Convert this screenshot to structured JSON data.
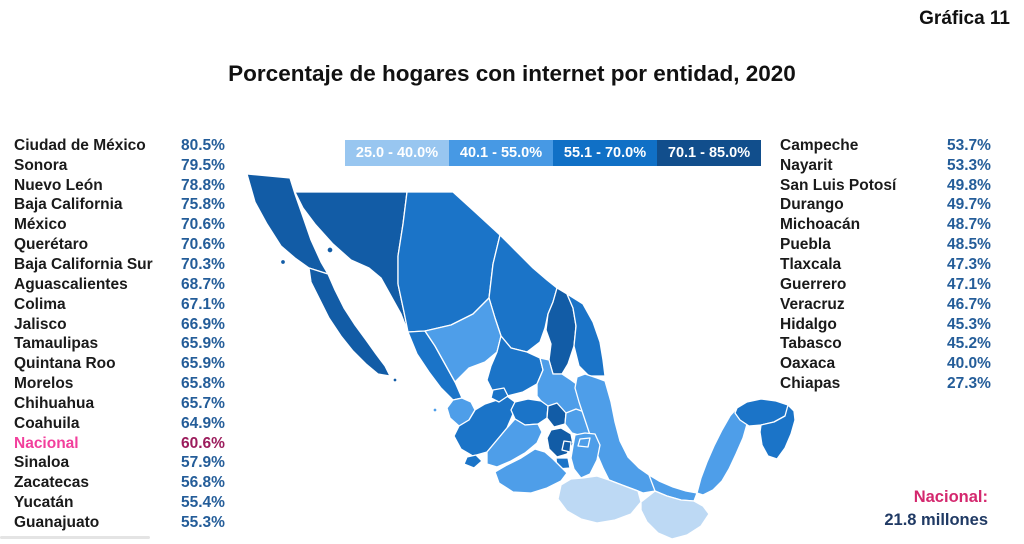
{
  "page": {
    "figure_label": "Gráfica 11",
    "title": "Porcentaje de hogares con internet por entidad, 2020"
  },
  "theme": {
    "value-blue": "#245D99",
    "national-pink": "#F23F9C",
    "national-maroon": "#9C1C5C",
    "footer-pink": "#D4286E",
    "footer-navy": "#203A64"
  },
  "legend": {
    "ranges": [
      {
        "label": "25.0 - 40.0%",
        "color": "#98C6F0"
      },
      {
        "label": "40.1 - 55.0%",
        "color": "#4799E4"
      },
      {
        "label": "55.1 - 70.0%",
        "color": "#1070C6"
      },
      {
        "label": "70.1 - 85.0%",
        "color": "#114E8C"
      }
    ]
  },
  "left_list": [
    {
      "name": "Ciudad de México",
      "value": "80.5%"
    },
    {
      "name": "Sonora",
      "value": "79.5%"
    },
    {
      "name": "Nuevo León",
      "value": "78.8%"
    },
    {
      "name": "Baja California",
      "value": "75.8%"
    },
    {
      "name": "México",
      "value": "70.6%"
    },
    {
      "name": "Querétaro",
      "value": "70.6%"
    },
    {
      "name": "Baja California Sur",
      "value": "70.3%"
    },
    {
      "name": "Aguascalientes",
      "value": "68.7%"
    },
    {
      "name": "Colima",
      "value": "67.1%"
    },
    {
      "name": "Jalisco",
      "value": "66.9%"
    },
    {
      "name": "Tamaulipas",
      "value": "65.9%"
    },
    {
      "name": "Quintana Roo",
      "value": "65.9%"
    },
    {
      "name": "Morelos",
      "value": "65.8%"
    },
    {
      "name": "Chihuahua",
      "value": "65.7%"
    },
    {
      "name": "Coahuila",
      "value": "64.9%"
    },
    {
      "name": "Nacional",
      "value": "60.6%",
      "highlight": true
    },
    {
      "name": "Sinaloa",
      "value": "57.9%"
    },
    {
      "name": "Zacatecas",
      "value": "56.8%"
    },
    {
      "name": "Yucatán",
      "value": "55.4%"
    },
    {
      "name": "Guanajuato",
      "value": "55.3%"
    }
  ],
  "right_list": [
    {
      "name": "Campeche",
      "value": "53.7%"
    },
    {
      "name": "Nayarit",
      "value": "53.3%"
    },
    {
      "name": "San Luis Potosí",
      "value": "49.8%"
    },
    {
      "name": "Durango",
      "value": "49.7%"
    },
    {
      "name": "Michoacán",
      "value": "48.7%"
    },
    {
      "name": "Puebla",
      "value": "48.5%"
    },
    {
      "name": "Tlaxcala",
      "value": "47.3%"
    },
    {
      "name": "Guerrero",
      "value": "47.1%"
    },
    {
      "name": "Veracruz",
      "value": "46.7%"
    },
    {
      "name": "Hidalgo",
      "value": "45.3%"
    },
    {
      "name": "Tabasco",
      "value": "45.2%"
    },
    {
      "name": "Oaxaca",
      "value": "40.0%"
    },
    {
      "name": "Chiapas",
      "value": "27.3%"
    }
  ],
  "national": {
    "label": "Nacional:",
    "value": "21.8 millones"
  },
  "map": {
    "range_colors": [
      "#BDD9F4",
      "#4E9EE9",
      "#1B74C8",
      "#125CA6"
    ],
    "states": [
      {
        "name": "Baja California",
        "range": 4
      },
      {
        "name": "Baja California Sur",
        "range": 4
      },
      {
        "name": "Sonora",
        "range": 4
      },
      {
        "name": "Chihuahua",
        "range": 3
      },
      {
        "name": "Coahuila",
        "range": 3
      },
      {
        "name": "Nuevo León",
        "range": 4
      },
      {
        "name": "Tamaulipas",
        "range": 3
      },
      {
        "name": "Sinaloa",
        "range": 3
      },
      {
        "name": "Durango",
        "range": 2
      },
      {
        "name": "Zacatecas",
        "range": 3
      },
      {
        "name": "San Luis Potosí",
        "range": 2
      },
      {
        "name": "Nayarit",
        "range": 2
      },
      {
        "name": "Jalisco",
        "range": 3
      },
      {
        "name": "Aguascalientes",
        "range": 3
      },
      {
        "name": "Guanajuato",
        "range": 3
      },
      {
        "name": "Querétaro",
        "range": 4
      },
      {
        "name": "Hidalgo",
        "range": 2
      },
      {
        "name": "Veracruz",
        "range": 2
      },
      {
        "name": "Michoacán",
        "range": 2
      },
      {
        "name": "Colima",
        "range": 3
      },
      {
        "name": "México",
        "range": 4
      },
      {
        "name": "Ciudad de México",
        "range": 4
      },
      {
        "name": "Morelos",
        "range": 3
      },
      {
        "name": "Tlaxcala",
        "range": 2
      },
      {
        "name": "Puebla",
        "range": 2
      },
      {
        "name": "Guerrero",
        "range": 2
      },
      {
        "name": "Oaxaca",
        "range": 1
      },
      {
        "name": "Tabasco",
        "range": 2
      },
      {
        "name": "Chiapas",
        "range": 1
      },
      {
        "name": "Campeche",
        "range": 2
      },
      {
        "name": "Yucatán",
        "range": 3
      },
      {
        "name": "Quintana Roo",
        "range": 3
      }
    ]
  },
  "chart_data": {
    "type": "heatmap",
    "subtype": "choropleth-map-mexico",
    "title": "Porcentaje de hogares con internet por entidad, 2020",
    "unit": "%",
    "bins": [
      "25.0 - 40.0%",
      "40.1 - 55.0%",
      "55.1 - 70.0%",
      "70.1 - 85.0%"
    ],
    "legend_position": "top-center",
    "data": [
      {
        "entity": "Ciudad de México",
        "value": 80.5
      },
      {
        "entity": "Sonora",
        "value": 79.5
      },
      {
        "entity": "Nuevo León",
        "value": 78.8
      },
      {
        "entity": "Baja California",
        "value": 75.8
      },
      {
        "entity": "México",
        "value": 70.6
      },
      {
        "entity": "Querétaro",
        "value": 70.6
      },
      {
        "entity": "Baja California Sur",
        "value": 70.3
      },
      {
        "entity": "Aguascalientes",
        "value": 68.7
      },
      {
        "entity": "Colima",
        "value": 67.1
      },
      {
        "entity": "Jalisco",
        "value": 66.9
      },
      {
        "entity": "Tamaulipas",
        "value": 65.9
      },
      {
        "entity": "Quintana Roo",
        "value": 65.9
      },
      {
        "entity": "Morelos",
        "value": 65.8
      },
      {
        "entity": "Chihuahua",
        "value": 65.7
      },
      {
        "entity": "Coahuila",
        "value": 64.9
      },
      {
        "entity": "Nacional",
        "value": 60.6
      },
      {
        "entity": "Sinaloa",
        "value": 57.9
      },
      {
        "entity": "Zacatecas",
        "value": 56.8
      },
      {
        "entity": "Yucatán",
        "value": 55.4
      },
      {
        "entity": "Guanajuato",
        "value": 55.3
      },
      {
        "entity": "Campeche",
        "value": 53.7
      },
      {
        "entity": "Nayarit",
        "value": 53.3
      },
      {
        "entity": "San Luis Potosí",
        "value": 49.8
      },
      {
        "entity": "Durango",
        "value": 49.7
      },
      {
        "entity": "Michoacán",
        "value": 48.7
      },
      {
        "entity": "Puebla",
        "value": 48.5
      },
      {
        "entity": "Tlaxcala",
        "value": 47.3
      },
      {
        "entity": "Guerrero",
        "value": 47.1
      },
      {
        "entity": "Veracruz",
        "value": 46.7
      },
      {
        "entity": "Hidalgo",
        "value": 45.3
      },
      {
        "entity": "Tabasco",
        "value": 45.2
      },
      {
        "entity": "Oaxaca",
        "value": 40.0
      },
      {
        "entity": "Chiapas",
        "value": 27.3
      }
    ],
    "national_annotation": "Nacional: 21.8 millones"
  }
}
